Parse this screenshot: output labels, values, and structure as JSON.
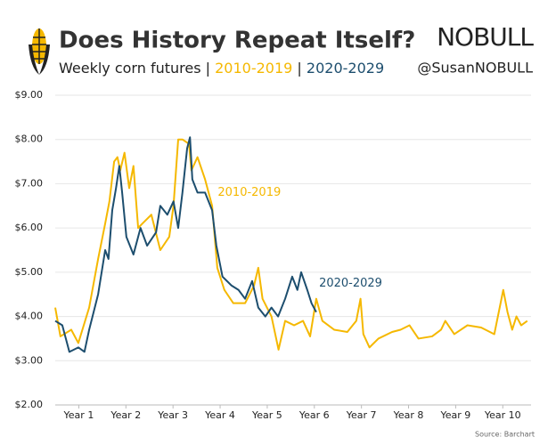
{
  "chart_data": {
    "type": "line",
    "title": "Does History Repeat Itself?",
    "subtitle": [
      "Weekly corn futures |",
      "2010-2019",
      "|",
      "2020-2029"
    ],
    "brand": "NOBULL",
    "handle": "@SusanNOBULL",
    "source": "Source: Barchart",
    "xlim": [
      0,
      10.1
    ],
    "xticks": [
      {
        "value": 0.5,
        "label": "Year 1"
      },
      {
        "value": 1.5,
        "label": "Year 2"
      },
      {
        "value": 2.5,
        "label": "Year 3"
      },
      {
        "value": 3.5,
        "label": "Year 4"
      },
      {
        "value": 4.5,
        "label": "Year 5"
      },
      {
        "value": 5.5,
        "label": "Year 6"
      },
      {
        "value": 6.5,
        "label": "Year 7"
      },
      {
        "value": 7.5,
        "label": "Year 8"
      },
      {
        "value": 8.5,
        "label": "Year 9"
      },
      {
        "value": 9.5,
        "label": "Year 10"
      }
    ],
    "ylim": [
      2,
      9
    ],
    "yticks": [
      {
        "value": 2,
        "label": "$2.00"
      },
      {
        "value": 3,
        "label": "$3.00"
      },
      {
        "value": 4,
        "label": "$4.00"
      },
      {
        "value": 5,
        "label": "$5.00"
      },
      {
        "value": 6,
        "label": "$6.00"
      },
      {
        "value": 7,
        "label": "$7.00"
      },
      {
        "value": 8,
        "label": "$8.00"
      },
      {
        "value": 9,
        "label": "$9.00"
      }
    ],
    "grid": true,
    "series": [
      {
        "name": "2010-2019",
        "color": "#f5b800",
        "x": [
          0,
          0.11,
          0.34,
          0.49,
          0.72,
          0.91,
          1.06,
          1.15,
          1.25,
          1.32,
          1.38,
          1.47,
          1.57,
          1.66,
          1.76,
          1.85,
          2.04,
          2.23,
          2.42,
          2.51,
          2.61,
          2.7,
          2.84,
          2.89,
          3.02,
          3.18,
          3.33,
          3.44,
          3.59,
          3.78,
          4.03,
          4.22,
          4.31,
          4.4,
          4.59,
          4.74,
          4.88,
          5.07,
          5.26,
          5.41,
          5.54,
          5.67,
          5.92,
          6.2,
          6.39,
          6.48,
          6.54,
          6.67,
          6.86,
          7.15,
          7.33,
          7.52,
          7.71,
          8.0,
          8.19,
          8.28,
          8.47,
          8.75,
          9.04,
          9.32,
          9.51,
          9.6,
          9.7,
          9.79,
          9.89,
          10.02
        ],
        "values": [
          4.2,
          3.55,
          3.7,
          3.4,
          4.2,
          5.3,
          6.1,
          6.6,
          7.5,
          7.6,
          7.3,
          7.7,
          6.9,
          7.4,
          6.0,
          6.1,
          6.3,
          5.5,
          5.8,
          6.5,
          8.0,
          8.0,
          7.9,
          7.3,
          7.6,
          7.1,
          6.5,
          5.1,
          4.6,
          4.3,
          4.3,
          4.7,
          5.1,
          4.4,
          4.0,
          3.25,
          3.9,
          3.8,
          3.9,
          3.55,
          4.4,
          3.9,
          3.7,
          3.65,
          3.9,
          4.4,
          3.6,
          3.3,
          3.5,
          3.65,
          3.7,
          3.8,
          3.5,
          3.55,
          3.7,
          3.9,
          3.6,
          3.8,
          3.75,
          3.6,
          4.6,
          4.1,
          3.7,
          4.0,
          3.8,
          3.9
        ]
      },
      {
        "name": "2020-2029",
        "color": "#1d4e6e",
        "x": [
          0,
          0.15,
          0.3,
          0.49,
          0.62,
          0.72,
          0.91,
          1.06,
          1.13,
          1.21,
          1.29,
          1.36,
          1.42,
          1.51,
          1.66,
          1.81,
          1.95,
          2.14,
          2.23,
          2.38,
          2.51,
          2.61,
          2.7,
          2.8,
          2.86,
          2.91,
          3.02,
          3.18,
          3.33,
          3.42,
          3.55,
          3.74,
          3.89,
          4.03,
          4.18,
          4.31,
          4.46,
          4.59,
          4.73,
          4.88,
          5.03,
          5.14,
          5.22,
          5.35,
          5.44,
          5.54
        ],
        "values": [
          3.9,
          3.8,
          3.2,
          3.3,
          3.2,
          3.7,
          4.5,
          5.5,
          5.3,
          6.4,
          6.9,
          7.4,
          6.8,
          5.8,
          5.4,
          6.0,
          5.6,
          5.9,
          6.5,
          6.3,
          6.6,
          6.0,
          6.8,
          7.8,
          8.05,
          7.1,
          6.8,
          6.8,
          6.4,
          5.6,
          4.9,
          4.7,
          4.6,
          4.4,
          4.8,
          4.2,
          4.0,
          4.2,
          4.0,
          4.4,
          4.9,
          4.6,
          5.0,
          4.6,
          4.3,
          4.1
        ]
      }
    ],
    "annotations": [
      {
        "text": "2010-2019",
        "x": 3.45,
        "y": 6.8
      },
      {
        "text": "2020-2029",
        "x": 5.6,
        "y": 4.75
      }
    ]
  }
}
